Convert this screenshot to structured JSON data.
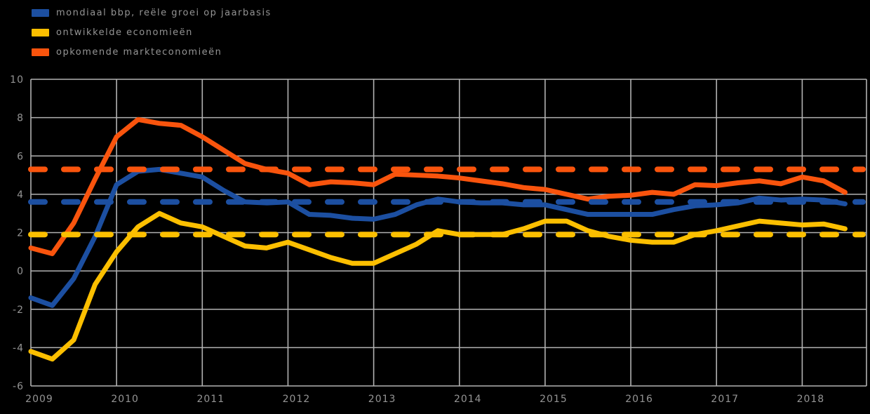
{
  "chart_data": {
    "type": "line",
    "title": "",
    "xlabel": "",
    "ylabel": "",
    "background_color": "#000000",
    "grid": true,
    "grid_color": "#b2b2b2",
    "text_color": "#9c9c9c",
    "legend_position": "top-left",
    "ylim": [
      -6,
      10
    ],
    "y_tick_step": 2,
    "y_ticks": [
      "10",
      "8",
      "6",
      "4",
      "2",
      "0",
      "-2",
      "-4",
      "-6"
    ],
    "x_ticks": [
      "2009",
      "2010",
      "2011",
      "2012",
      "2013",
      "2014",
      "2015",
      "2016",
      "2017",
      "2018"
    ],
    "x_start": 2009,
    "x_step_years": 0.25,
    "x_axis_end": 2018.75,
    "average_line_style": "dashed",
    "series": [
      {
        "name": "mondiaal bbp, reële groei op jaarbasis",
        "color": "#1c4fa1",
        "average": 3.6,
        "values": [
          -1.4,
          -1.8,
          -0.4,
          1.8,
          4.5,
          5.2,
          5.3,
          5.1,
          4.9,
          4.2,
          3.6,
          3.55,
          3.6,
          2.95,
          2.9,
          2.75,
          2.7,
          2.95,
          3.45,
          3.75,
          3.6,
          3.55,
          3.55,
          3.45,
          3.45,
          3.2,
          2.95,
          2.95,
          2.95,
          2.95,
          3.2,
          3.4,
          3.45,
          3.55,
          3.8,
          3.7,
          3.75,
          3.7,
          3.5
        ]
      },
      {
        "name": "ontwikkelde economieën",
        "color": "#fcbf00",
        "average": 1.9,
        "values": [
          -4.2,
          -4.6,
          -3.6,
          -0.7,
          1.0,
          2.3,
          3.0,
          2.5,
          2.3,
          1.8,
          1.3,
          1.2,
          1.5,
          1.1,
          0.7,
          0.4,
          0.4,
          0.9,
          1.4,
          2.1,
          1.9,
          1.9,
          1.9,
          2.2,
          2.6,
          2.6,
          2.1,
          1.8,
          1.6,
          1.5,
          1.5,
          1.9,
          2.1,
          2.35,
          2.6,
          2.5,
          2.4,
          2.45,
          2.2
        ]
      },
      {
        "name": "opkomende markteconomieën",
        "color": "#f9540d",
        "average": 5.3,
        "values": [
          1.2,
          0.9,
          2.5,
          4.8,
          7.0,
          7.9,
          7.7,
          7.6,
          7.0,
          6.3,
          5.6,
          5.3,
          5.1,
          4.5,
          4.65,
          4.6,
          4.5,
          5.05,
          5.0,
          4.95,
          4.85,
          4.7,
          4.55,
          4.35,
          4.25,
          4.0,
          3.75,
          3.9,
          3.95,
          4.1,
          4.0,
          4.5,
          4.45,
          4.6,
          4.7,
          4.55,
          4.9,
          4.7,
          4.1
        ]
      }
    ]
  }
}
